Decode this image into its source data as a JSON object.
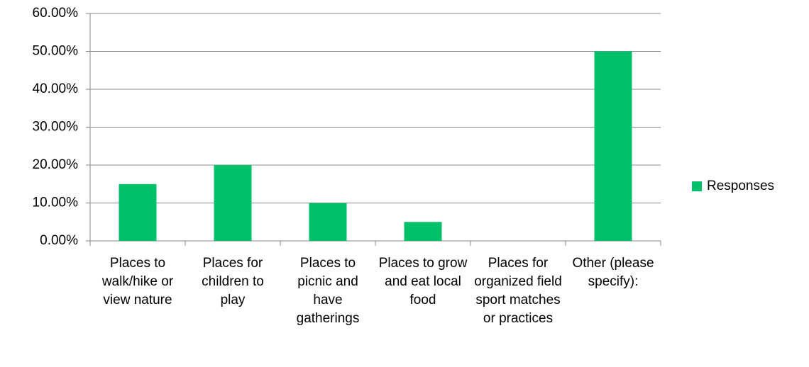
{
  "chart_data": {
    "type": "bar",
    "categories": [
      "Places to walk/hike or view nature",
      "Places for children to play",
      "Places to picnic and have gatherings",
      "Places to grow and eat local food",
      "Places for organized field sport matches or practices",
      "Other (please specify):"
    ],
    "series": [
      {
        "name": "Responses",
        "color": "#00c06a",
        "values": [
          15,
          20,
          10,
          5,
          0,
          50
        ]
      }
    ],
    "ylim": [
      0,
      60
    ],
    "yticks": [
      {
        "value": 0,
        "label": "0.00%"
      },
      {
        "value": 10,
        "label": "10.00%"
      },
      {
        "value": 20,
        "label": "20.00%"
      },
      {
        "value": 30,
        "label": "30.00%"
      },
      {
        "value": 40,
        "label": "40.00%"
      },
      {
        "value": 50,
        "label": "50.00%"
      },
      {
        "value": 60,
        "label": "60.00%"
      }
    ],
    "grid": true,
    "legend": "right"
  }
}
